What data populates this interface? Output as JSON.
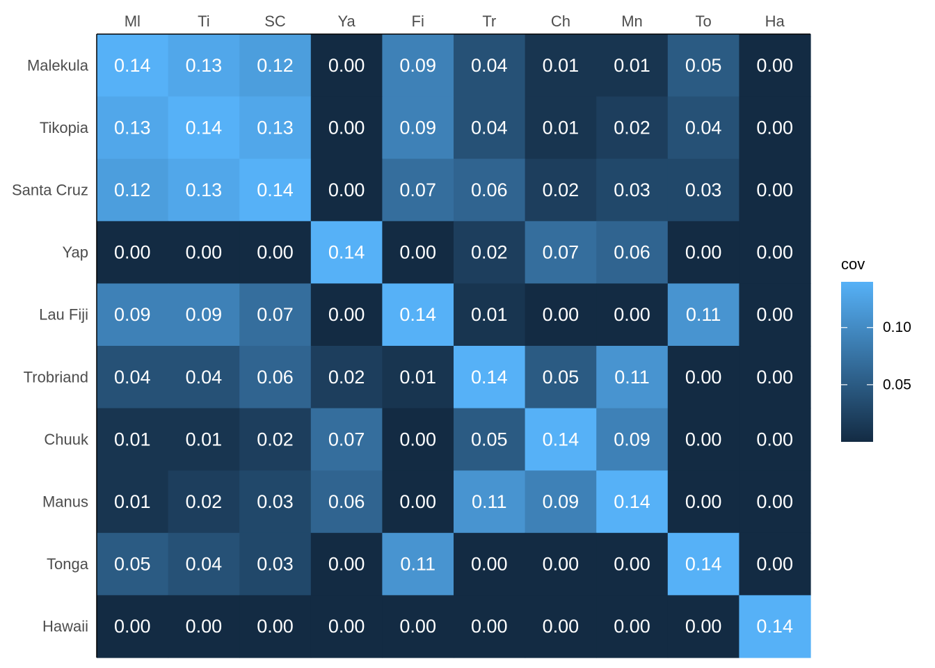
{
  "chart_data": {
    "type": "heatmap",
    "title": "",
    "xlabel": "",
    "ylabel": "",
    "x_categories": [
      "Ml",
      "Ti",
      "SC",
      "Ya",
      "Fi",
      "Tr",
      "Ch",
      "Mn",
      "To",
      "Ha"
    ],
    "y_categories": [
      "Malekula",
      "Tikopia",
      "Santa Cruz",
      "Yap",
      "Lau Fiji",
      "Trobriand",
      "Chuuk",
      "Manus",
      "Tonga",
      "Hawaii"
    ],
    "values": [
      [
        0.14,
        0.13,
        0.12,
        0.0,
        0.09,
        0.04,
        0.01,
        0.01,
        0.05,
        0.0
      ],
      [
        0.13,
        0.14,
        0.13,
        0.0,
        0.09,
        0.04,
        0.01,
        0.02,
        0.04,
        0.0
      ],
      [
        0.12,
        0.13,
        0.14,
        0.0,
        0.07,
        0.06,
        0.02,
        0.03,
        0.03,
        0.0
      ],
      [
        0.0,
        0.0,
        0.0,
        0.14,
        0.0,
        0.02,
        0.07,
        0.06,
        0.0,
        0.0
      ],
      [
        0.09,
        0.09,
        0.07,
        0.0,
        0.14,
        0.01,
        0.0,
        0.0,
        0.11,
        0.0
      ],
      [
        0.04,
        0.04,
        0.06,
        0.02,
        0.01,
        0.14,
        0.05,
        0.11,
        0.0,
        0.0
      ],
      [
        0.01,
        0.01,
        0.02,
        0.07,
        0.0,
        0.05,
        0.14,
        0.09,
        0.0,
        0.0
      ],
      [
        0.01,
        0.02,
        0.03,
        0.06,
        0.0,
        0.11,
        0.09,
        0.14,
        0.0,
        0.0
      ],
      [
        0.05,
        0.04,
        0.03,
        0.0,
        0.11,
        0.0,
        0.0,
        0.0,
        0.14,
        0.0
      ],
      [
        0.0,
        0.0,
        0.0,
        0.0,
        0.0,
        0.0,
        0.0,
        0.0,
        0.0,
        0.14
      ]
    ],
    "x_axis_position": "top",
    "legend": {
      "title": "cov",
      "placement": "right",
      "ticks": [
        0.05,
        0.1
      ],
      "tick_labels": [
        "0.05",
        "0.10"
      ],
      "range": [
        0.0,
        0.14
      ],
      "color_low": "#132B43",
      "color_high": "#56B1F7"
    },
    "grid": false
  }
}
